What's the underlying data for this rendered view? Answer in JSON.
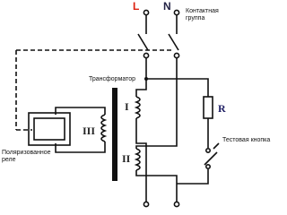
{
  "labels": {
    "phase": "L",
    "neutral": "N",
    "contact_group": [
      "Контактная",
      "группа"
    ],
    "transformer": "Трансформатор",
    "winding_1": "I",
    "winding_2": "II",
    "winding_3": "III",
    "resistor": "R",
    "test_button": "Тестовая кнопка",
    "relay": [
      "Поляризованное",
      "реле"
    ]
  }
}
